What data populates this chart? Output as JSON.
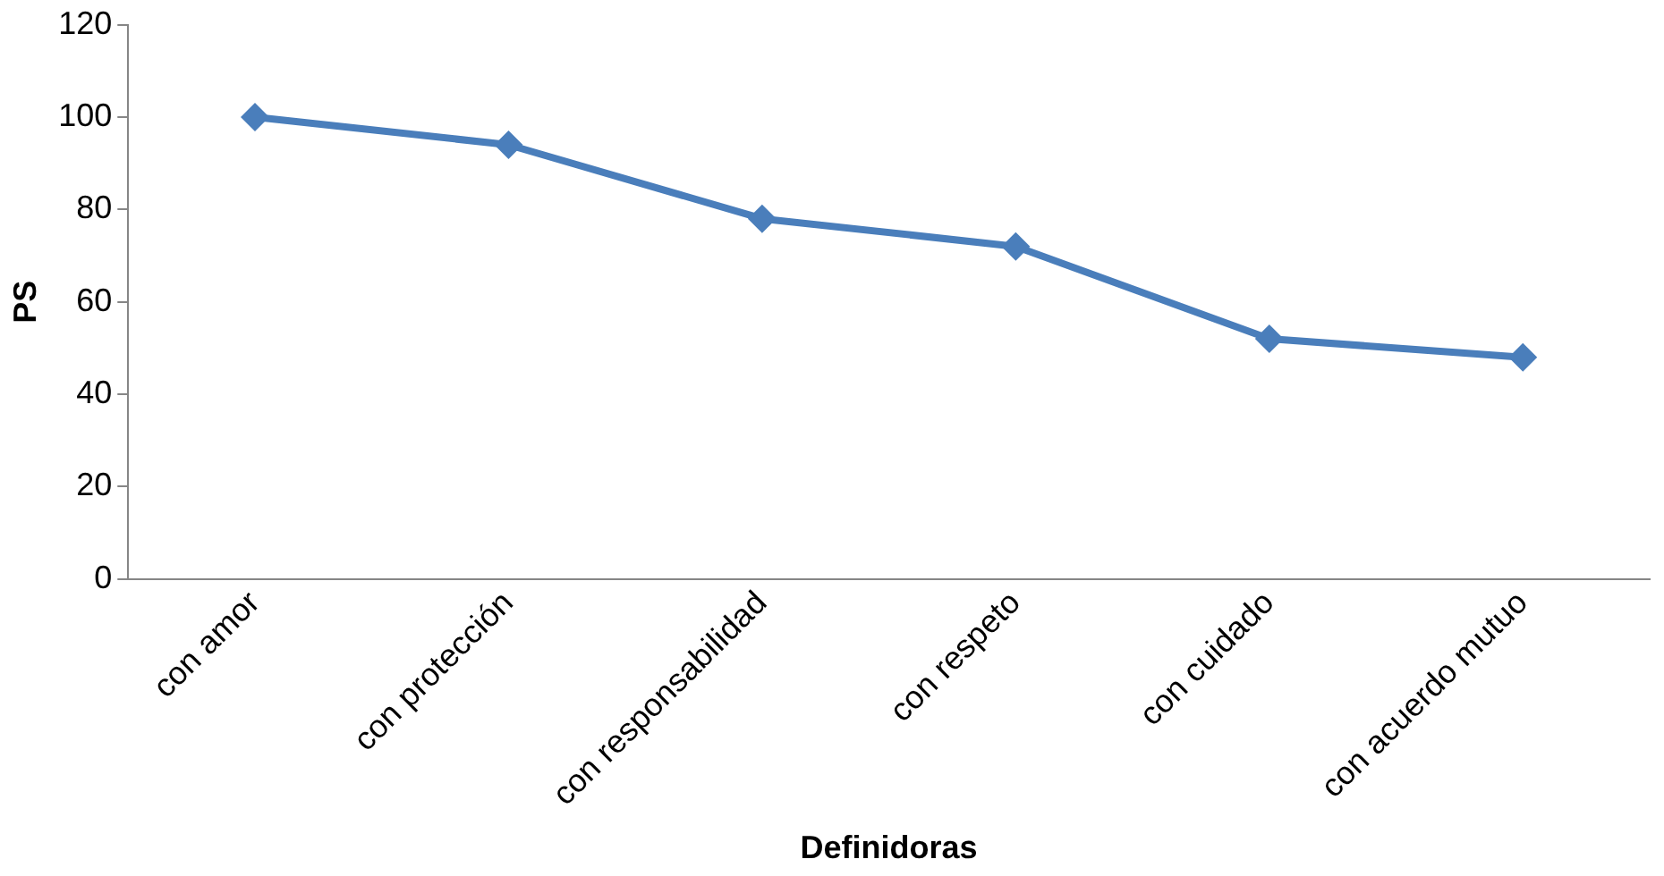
{
  "chart_data": {
    "type": "line",
    "xlabel": "Definidoras",
    "ylabel": "PS",
    "categories": [
      "con amor",
      "con protección",
      "con responsabilidad",
      "con respeto",
      "con cuidado",
      "con acuerdo mutuo"
    ],
    "values": [
      100,
      94,
      78,
      72,
      52,
      48
    ],
    "color": "#4a7ebb",
    "ylim": [
      0,
      120
    ],
    "yticks": [
      0,
      20,
      40,
      60,
      80,
      100,
      120
    ],
    "grid": false,
    "legend": false,
    "marker": "diamond",
    "line_style": "solid"
  }
}
